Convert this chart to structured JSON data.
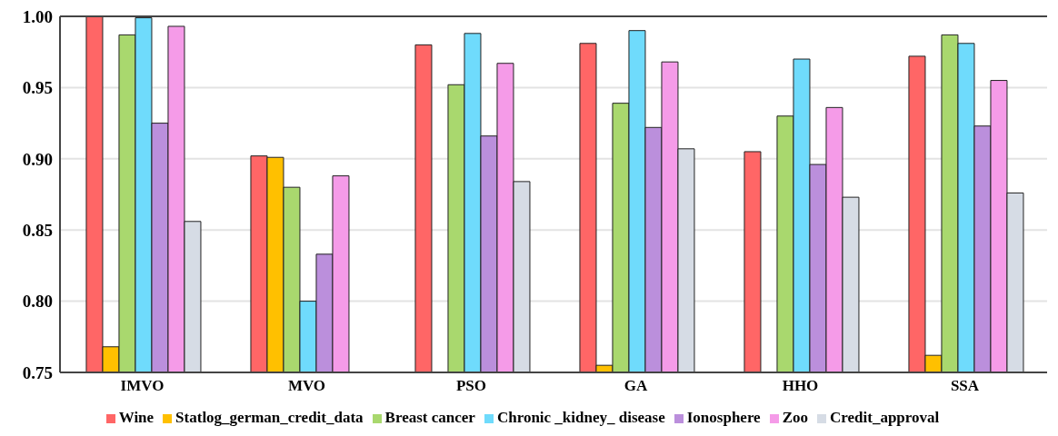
{
  "chart_data": {
    "type": "bar",
    "categories": [
      "IMVO",
      "MVO",
      "PSO",
      "GA",
      "HHO",
      "SSA"
    ],
    "series": [
      {
        "name": "Wine",
        "color": "#ff6666",
        "values": [
          1.0,
          0.902,
          0.98,
          0.981,
          0.905,
          0.972
        ]
      },
      {
        "name": "Statlog_german_credit_data",
        "color": "#ffc000",
        "values": [
          0.768,
          0.901,
          null,
          0.755,
          null,
          0.762
        ]
      },
      {
        "name": "Breast cancer",
        "color": "#a9d86e",
        "values": [
          0.987,
          0.88,
          0.952,
          0.939,
          0.93,
          0.987
        ]
      },
      {
        "name": "Chronic _kidney_ disease",
        "color": "#6fdbfc",
        "values": [
          0.999,
          0.8,
          0.988,
          0.99,
          0.97,
          0.981
        ]
      },
      {
        "name": "Ionosphere",
        "color": "#bb8fdc",
        "values": [
          0.925,
          0.833,
          0.916,
          0.922,
          0.896,
          0.923
        ]
      },
      {
        "name": "Zoo",
        "color": "#f59be8",
        "values": [
          0.993,
          0.888,
          0.967,
          0.968,
          0.936,
          0.955
        ]
      },
      {
        "name": "Credit_approval",
        "color": "#d6dce5",
        "values": [
          0.856,
          null,
          0.884,
          0.907,
          0.873,
          0.876
        ]
      }
    ],
    "ylim": [
      0.75,
      1.0
    ],
    "yticks": [
      0.75,
      {
        "value": 0.8,
        "label": "0.80"
      },
      0.85,
      {
        "value": 0.9,
        "label": "0.90"
      },
      0.95,
      {
        "value": 1.0,
        "label": "1.00"
      }
    ],
    "grid": "y",
    "legend": "bottom"
  }
}
